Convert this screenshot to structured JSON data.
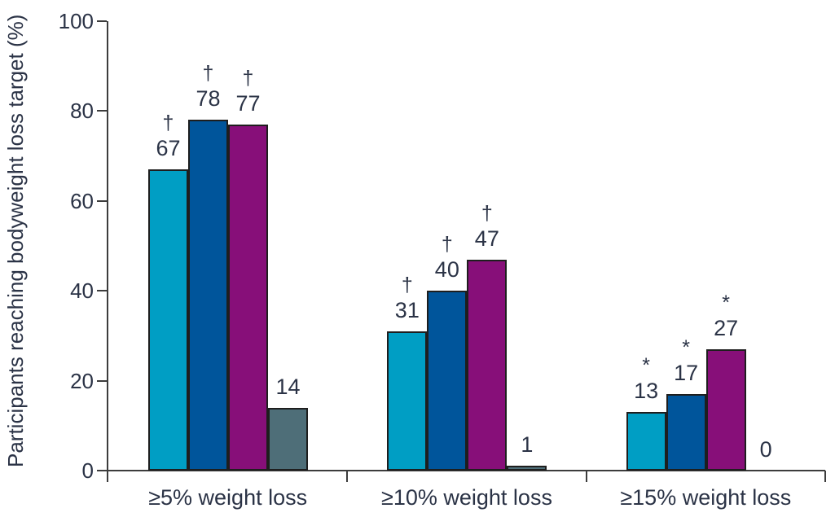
{
  "chart_data": {
    "type": "bar",
    "title": "",
    "xlabel": "",
    "ylabel": "Participants reaching bodyweight loss target (%)",
    "ylim": [
      0,
      100
    ],
    "yticks": [
      0,
      20,
      40,
      60,
      80,
      100
    ],
    "grid": false,
    "legend": null,
    "categories": [
      "≥5% weight loss",
      "≥10% weight loss",
      "≥15% weight loss"
    ],
    "series": [
      {
        "name": "series-1",
        "color": "#009EC4",
        "values": [
          67,
          31,
          13
        ],
        "annotations": [
          "†",
          "†",
          "*"
        ]
      },
      {
        "name": "series-2",
        "color": "#00559B",
        "values": [
          78,
          40,
          17
        ],
        "annotations": [
          "†",
          "†",
          "*"
        ]
      },
      {
        "name": "series-3",
        "color": "#870F79",
        "values": [
          77,
          47,
          27
        ],
        "annotations": [
          "†",
          "†",
          "*"
        ]
      },
      {
        "name": "series-4",
        "color": "#4E6E78",
        "values": [
          14,
          1,
          0
        ],
        "annotations": [
          "",
          "",
          ""
        ]
      }
    ],
    "value_labels_shown": true,
    "colors": {
      "text": "#2b3346",
      "axis": "#3c3c3c",
      "bar_outline": "#1e1e1e",
      "background": "#ffffff"
    }
  }
}
